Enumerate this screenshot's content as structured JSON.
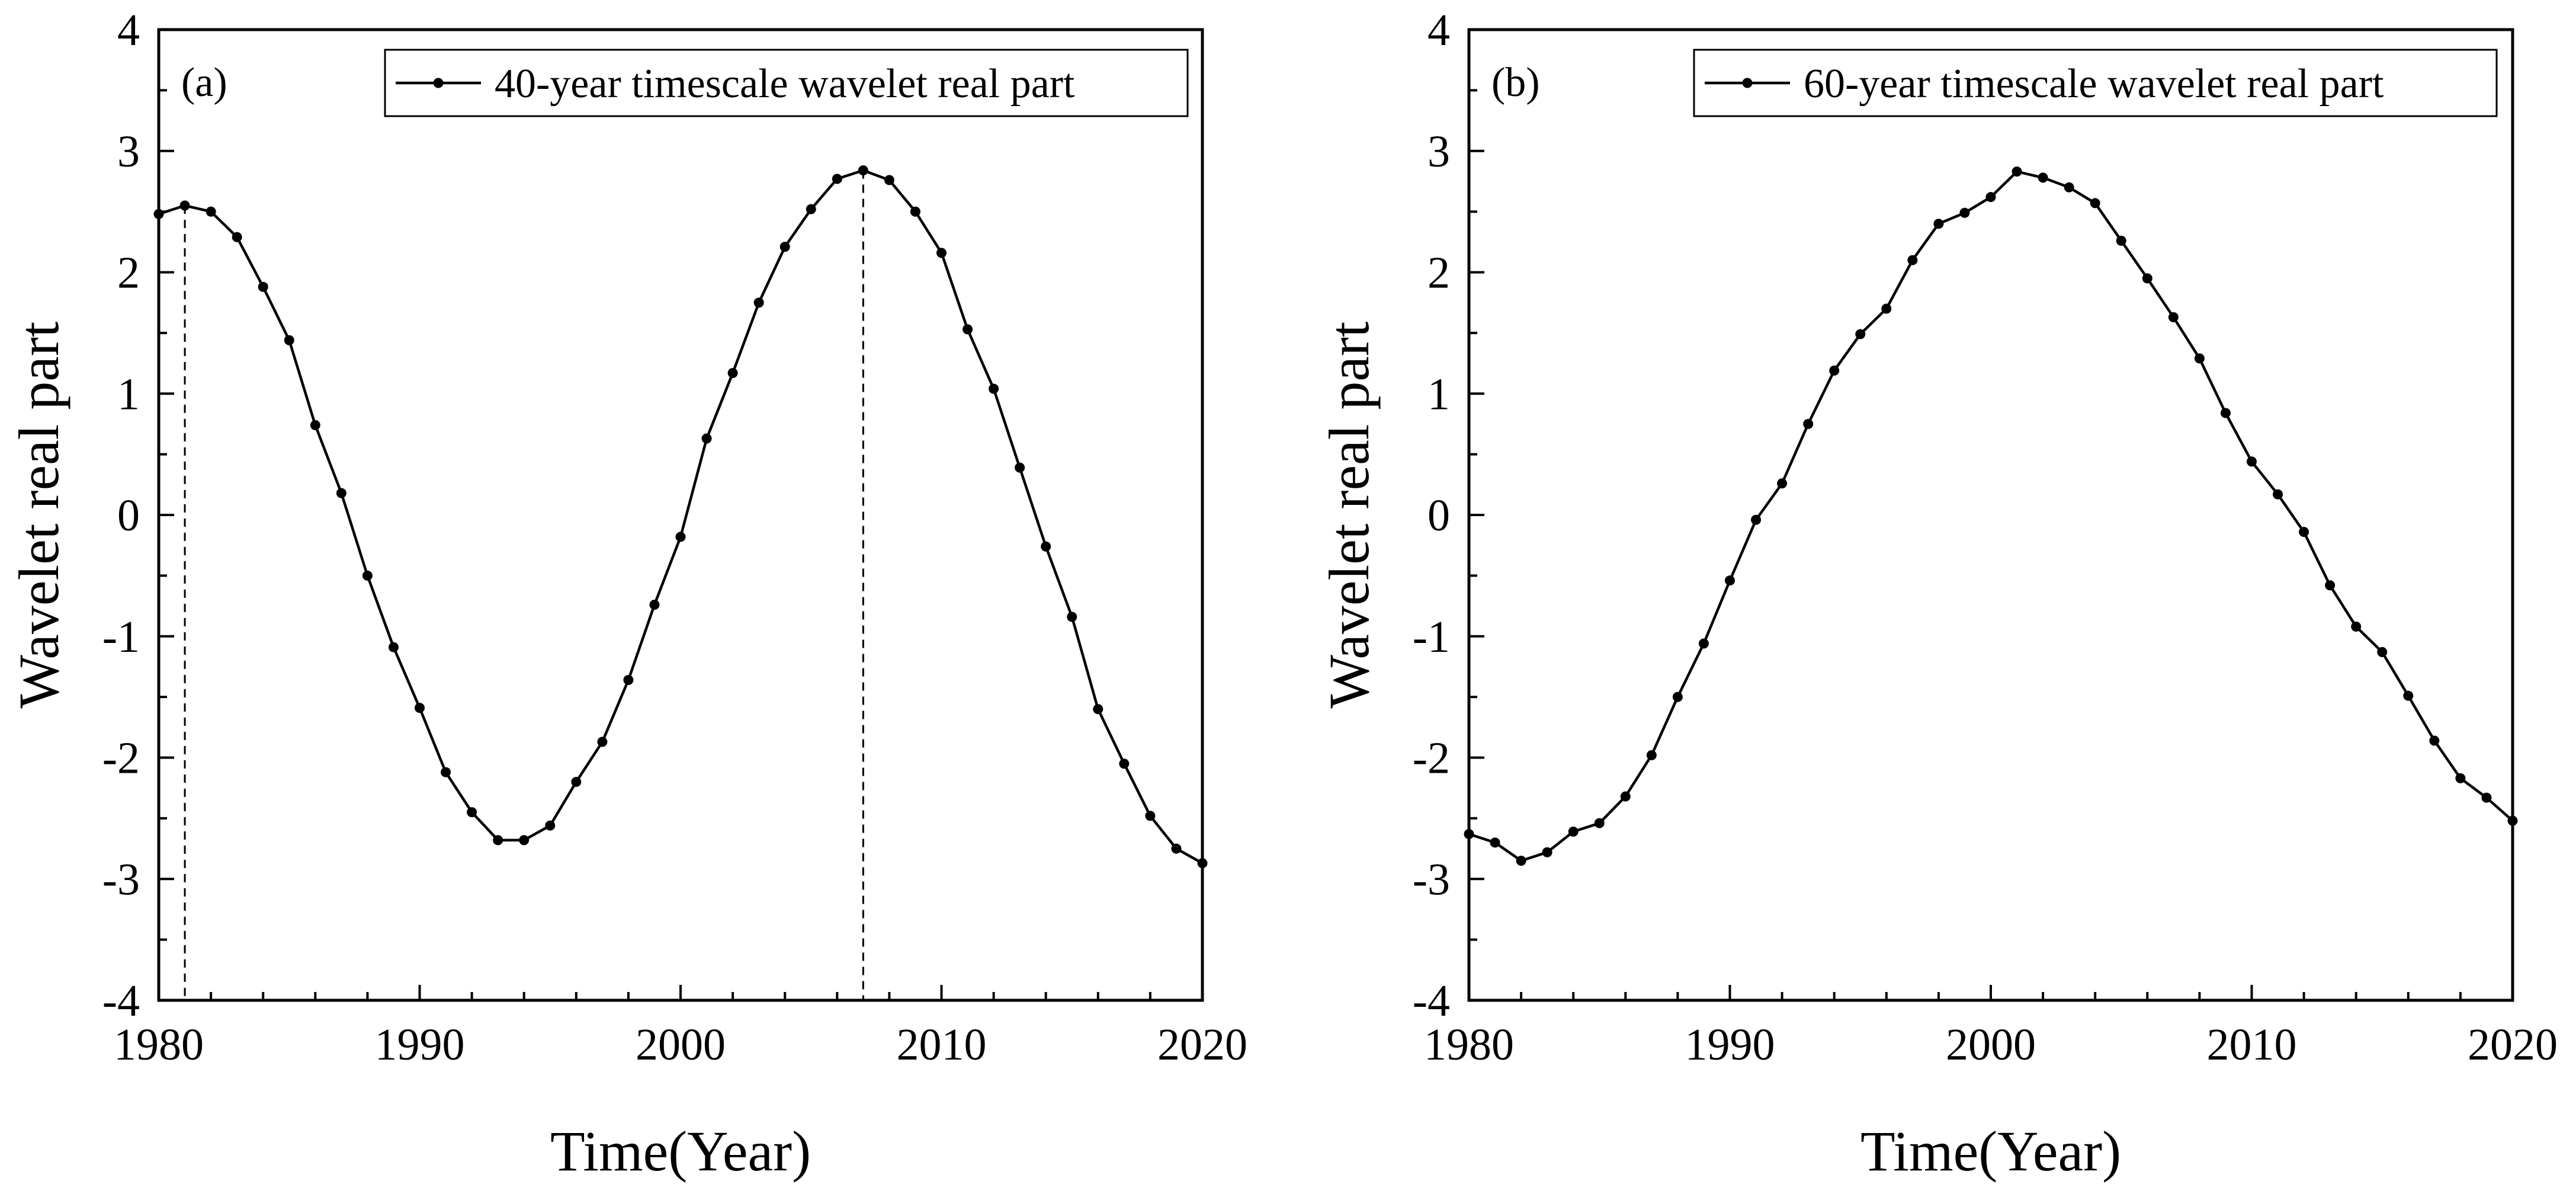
{
  "chart_data": [
    {
      "type": "line",
      "panel_label": "(a)",
      "xlabel": "Time(Year)",
      "ylabel": "Wavelet real part",
      "xlim": [
        1980,
        2020
      ],
      "ylim": [
        -4,
        4
      ],
      "xticks": [
        "1980",
        "1990",
        "2000",
        "2010",
        "2020"
      ],
      "yticks": [
        "4",
        "3",
        "2",
        "1",
        "0",
        "-1",
        "-2",
        "-3",
        "-4"
      ],
      "legend": "40-year timescale wavelet real part",
      "reference_lines_x": [
        1981,
        2007
      ],
      "series": [
        {
          "name": "40-year timescale wavelet real part",
          "x": [
            1980,
            1981,
            1982,
            1983,
            1984,
            1985,
            1986,
            1987,
            1988,
            1989,
            1990,
            1991,
            1992,
            1993,
            1994,
            1995,
            1996,
            1997,
            1998,
            1999,
            2000,
            2001,
            2002,
            2003,
            2004,
            2005,
            2006,
            2007,
            2008,
            2009,
            2010,
            2011,
            2012,
            2013,
            2014,
            2015,
            2016,
            2017,
            2018,
            2019,
            2020
          ],
          "y": [
            2.48,
            2.55,
            2.5,
            2.29,
            1.88,
            1.44,
            0.74,
            0.18,
            -0.5,
            -1.09,
            -1.59,
            -2.12,
            -2.45,
            -2.68,
            -2.68,
            -2.56,
            -2.2,
            -1.87,
            -1.36,
            -0.74,
            -0.18,
            0.63,
            1.17,
            1.75,
            2.21,
            2.52,
            2.77,
            2.84,
            2.76,
            2.5,
            2.16,
            1.53,
            1.04,
            0.39,
            -0.26,
            -0.84,
            -1.6,
            -2.05,
            -2.48,
            -2.75,
            -2.87
          ]
        }
      ]
    },
    {
      "type": "line",
      "panel_label": "(b)",
      "xlabel": "Time(Year)",
      "ylabel": "Wavelet real part",
      "xlim": [
        1980,
        2020
      ],
      "ylim": [
        -4,
        4
      ],
      "xticks": [
        "1980",
        "1990",
        "2000",
        "2010",
        "2020"
      ],
      "yticks": [
        "4",
        "3",
        "2",
        "1",
        "0",
        "-1",
        "-2",
        "-3",
        "-4"
      ],
      "legend": "60-year timescale wavelet real part",
      "reference_lines_x": [],
      "series": [
        {
          "name": "60-year timescale wavelet real part",
          "x": [
            1980,
            1981,
            1982,
            1983,
            1984,
            1985,
            1986,
            1987,
            1988,
            1989,
            1990,
            1991,
            1992,
            1993,
            1994,
            1995,
            1996,
            1997,
            1998,
            1999,
            2000,
            2001,
            2002,
            2003,
            2004,
            2005,
            2006,
            2007,
            2008,
            2009,
            2010,
            2011,
            2012,
            2013,
            2014,
            2015,
            2016,
            2017,
            2018,
            2019,
            2020
          ],
          "y": [
            -2.63,
            -2.7,
            -2.85,
            -2.78,
            -2.61,
            -2.54,
            -2.32,
            -1.98,
            -1.5,
            -1.06,
            -0.54,
            -0.04,
            0.26,
            0.75,
            1.19,
            1.49,
            1.7,
            2.1,
            2.4,
            2.49,
            2.62,
            2.83,
            2.78,
            2.7,
            2.57,
            2.26,
            1.95,
            1.63,
            1.29,
            0.84,
            0.44,
            0.17,
            -0.14,
            -0.58,
            -0.92,
            -1.13,
            -1.49,
            -1.86,
            -2.17,
            -2.33,
            -2.52
          ]
        }
      ]
    }
  ]
}
